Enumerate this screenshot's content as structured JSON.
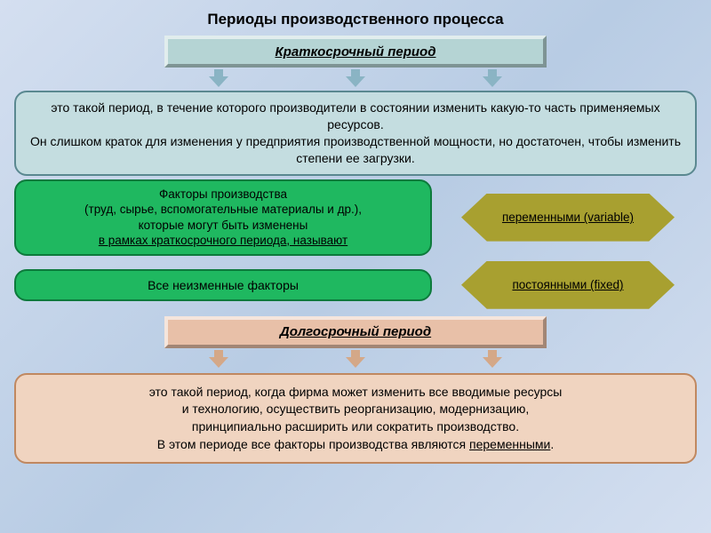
{
  "title": "Периоды производственного процесса",
  "short_term": {
    "header": "Краткосрочный период",
    "header_bg": "#b5d4d4",
    "header_border": "#7aa8a8",
    "arrow_color": "#8ab4c4",
    "desc": "это такой период, в течение которого производители в состоянии изменить какую-то часть применяемых ресурсов.\nОн слишком краток для изменения у предприятия производственной мощности, но достаточен, чтобы изменить степени ее загрузки.",
    "desc_bg": "#c4dde0",
    "desc_border": "#5a8890"
  },
  "factors_box": {
    "line1": "Факторы производства",
    "line2": "(труд, сырье, вспомогательные материалы и др.),",
    "line3": "которые могут быть изменены",
    "line4_underlined": "в рамках краткосрочного периода, называют",
    "bg": "#1fb860",
    "border": "#0d7a3c"
  },
  "variable_diamond": {
    "text": "переменными (variable)",
    "bg": "#a8a030",
    "text_color": "#000000"
  },
  "fixed_box": {
    "text": "Все неизменные факторы",
    "bg": "#1fb860",
    "border": "#0d7a3c"
  },
  "fixed_diamond": {
    "text": "постоянными (fixed)",
    "bg": "#a8a030",
    "text_color": "#000000"
  },
  "long_term": {
    "header": "Долгосрочный период",
    "header_bg": "#e8c0a8",
    "header_border": "#c08860",
    "arrow_color": "#d4a888",
    "desc_lines": [
      "это такой период, когда фирма может изменить все вводимые ресурсы",
      "и технологию, осуществить реорганизацию, модернизацию,",
      "принципиально расширить или сократить производство."
    ],
    "desc_last_prefix": "В этом периоде все факторы производства являются ",
    "desc_last_underlined": "переменными",
    "desc_bg": "#f0d4c0",
    "desc_border": "#c08860"
  },
  "colors": {
    "title_text": "#000000",
    "body_text": "#000000"
  }
}
